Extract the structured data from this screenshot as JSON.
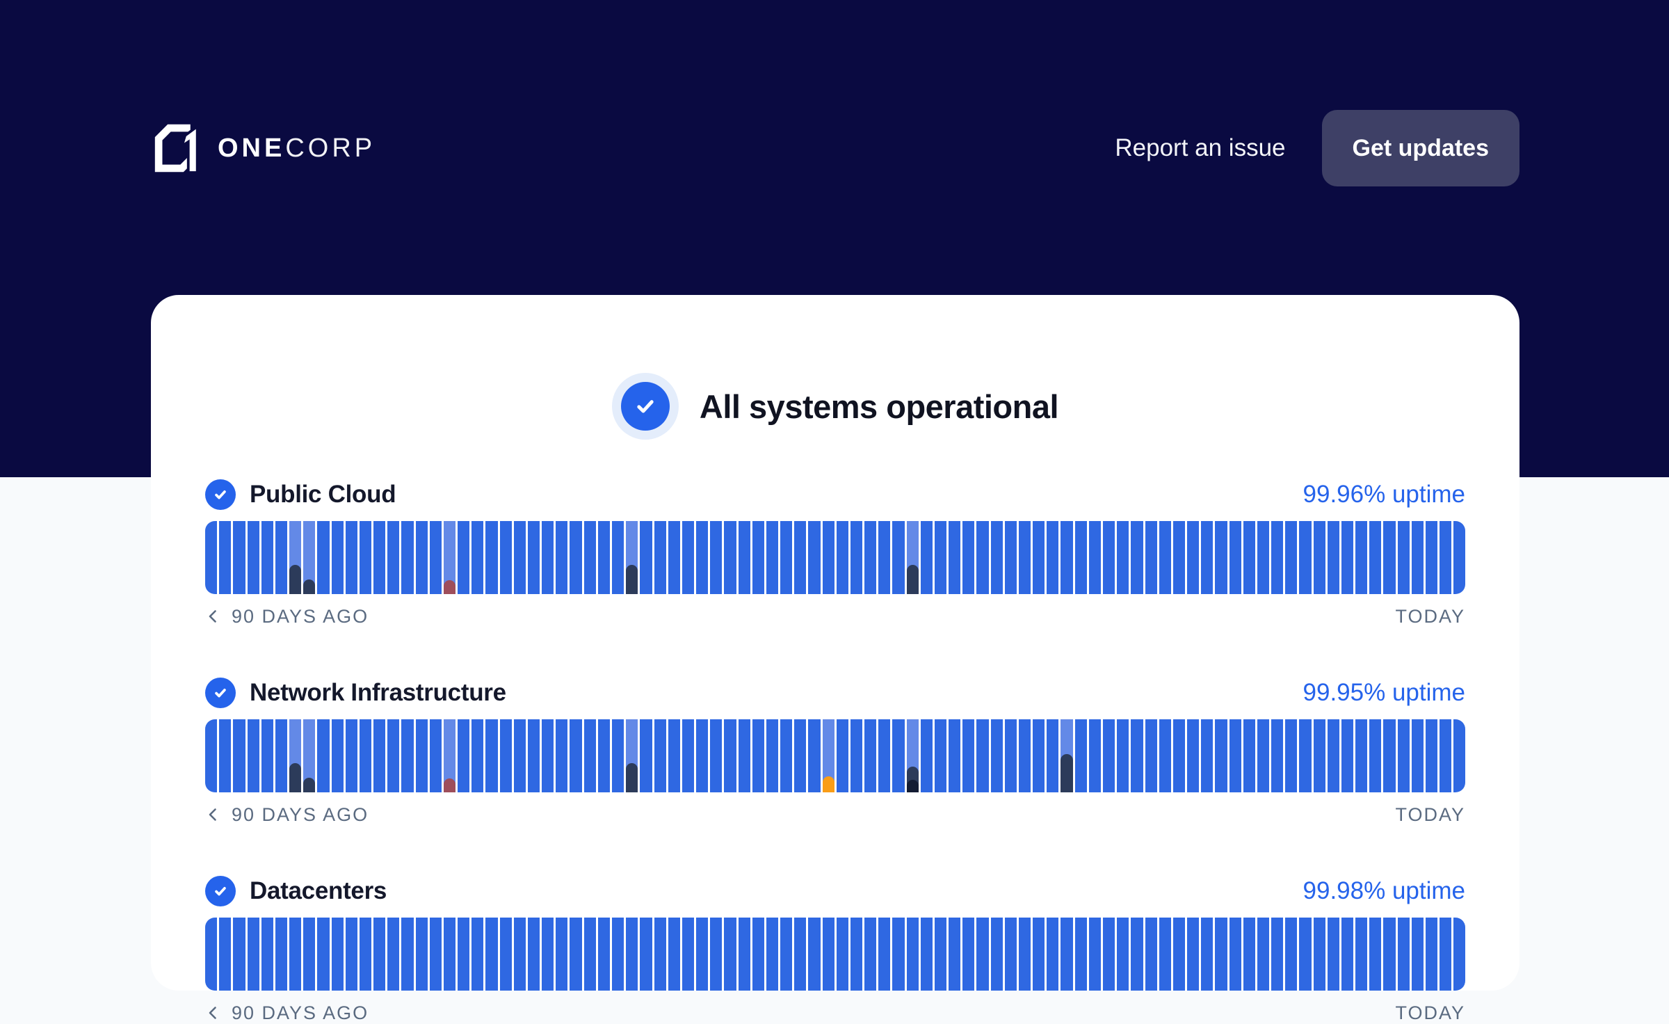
{
  "header": {
    "brand": {
      "bold": "ONE",
      "light": "CORP",
      "logo_icon": "onecorp-square-1-logo"
    },
    "report_link": "Report an issue",
    "updates_button": "Get updates"
  },
  "hero": {
    "title": "All systems operational",
    "status_icon": "check-circle"
  },
  "timeline": {
    "days": 90,
    "start_label": "90 DAYS AGO",
    "end_label": "TODAY"
  },
  "colors": {
    "navy_bg": "#0A0A41",
    "page_bg": "#F8FAFC",
    "card_bg": "#FFFFFF",
    "accent_blue": "#2563EB",
    "bar_blue": "#2F68E2",
    "bar_light": "#6389E7",
    "overlay_dark": "#2C3B5A",
    "overlay_darkest": "#131C33",
    "overlay_red": "#9E4E5B",
    "overlay_orange": "#F99D17",
    "label_gray": "#5A6A80",
    "button_bg": "#3E4066"
  },
  "services": [
    {
      "name": "Public Cloud",
      "uptime": "99.96% uptime",
      "incidents": [
        {
          "day": 6,
          "type": "dark",
          "height": 0.4
        },
        {
          "day": 7,
          "type": "dark",
          "height": 0.2
        },
        {
          "day": 17,
          "type": "red",
          "height": 0.19
        },
        {
          "day": 30,
          "type": "dark",
          "height": 0.4
        },
        {
          "day": 50,
          "type": "dark",
          "height": 0.4
        }
      ]
    },
    {
      "name": "Network Infrastructure",
      "uptime": "99.95% uptime",
      "incidents": [
        {
          "day": 6,
          "type": "dark",
          "height": 0.4
        },
        {
          "day": 7,
          "type": "dark",
          "height": 0.2
        },
        {
          "day": 17,
          "type": "red",
          "height": 0.19
        },
        {
          "day": 30,
          "type": "dark",
          "height": 0.4
        },
        {
          "day": 44,
          "type": "orange",
          "height": 0.22
        },
        {
          "day": 50,
          "type": "dark",
          "height": 0.35
        },
        {
          "day": 50,
          "type": "darkest",
          "height": 0.17
        },
        {
          "day": 61,
          "type": "dark",
          "height": 0.52
        }
      ]
    },
    {
      "name": "Datacenters",
      "uptime": "99.98% uptime",
      "incidents": []
    }
  ]
}
